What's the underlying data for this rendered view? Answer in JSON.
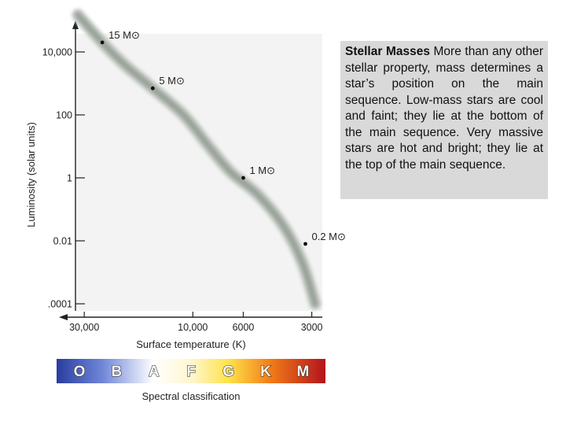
{
  "chart_data": {
    "type": "line",
    "xlabel": "Surface temperature (K)",
    "ylabel": "Luminosity (solar units)",
    "x_ticks": [
      "30,000",
      "10,000",
      "6000",
      "3000"
    ],
    "y_ticks": [
      "10,000",
      "100",
      "1",
      "0.01",
      ".0001"
    ],
    "series": [
      {
        "points": [
          {
            "temperature": 32000,
            "luminosity": 150000
          },
          {
            "temperature": 25000,
            "luminosity": 20000
          },
          {
            "temperature": 20000,
            "luminosity": 4000
          },
          {
            "temperature": 15000,
            "luminosity": 700
          },
          {
            "temperature": 11000,
            "luminosity": 100
          },
          {
            "temperature": 8500,
            "luminosity": 10
          },
          {
            "temperature": 6800,
            "luminosity": 1.5
          },
          {
            "temperature": 5200,
            "luminosity": 0.3
          },
          {
            "temperature": 4000,
            "luminosity": 0.03
          },
          {
            "temperature": 3300,
            "luminosity": 0.002
          },
          {
            "temperature": 2900,
            "luminosity": 0.0001
          }
        ]
      }
    ],
    "annotations": [
      {
        "label": "15 M⊙",
        "temperature": 25000,
        "luminosity": 20000
      },
      {
        "label": "5 M⊙",
        "temperature": 15000,
        "luminosity": 700
      },
      {
        "label": "1 M⊙",
        "temperature": 6000,
        "luminosity": 1
      },
      {
        "label": "0.2 M⊙",
        "temperature": 3200,
        "luminosity": 0.008
      }
    ]
  },
  "spectral": {
    "classes": [
      "O",
      "B",
      "A",
      "F",
      "G",
      "K",
      "M"
    ],
    "title": "Spectral classification",
    "colors": [
      "#2a3d9e",
      "#6f86d8",
      "#ffffff",
      "#fff6d0",
      "#ffe24a",
      "#f07a18",
      "#b3131c"
    ]
  },
  "caption": {
    "title": "Stellar Masses",
    "text": "More than any other stellar property, mass determines a star’s position on the main sequence. Low-mass stars are cool and faint; they lie at the bottom of the main sequence. Very massive stars are hot and bright; they lie at the top of the main sequence."
  },
  "colors": {
    "panel": "#f3f3f3",
    "band": "#9aa39a",
    "caption_bg": "#d9d9d9"
  }
}
